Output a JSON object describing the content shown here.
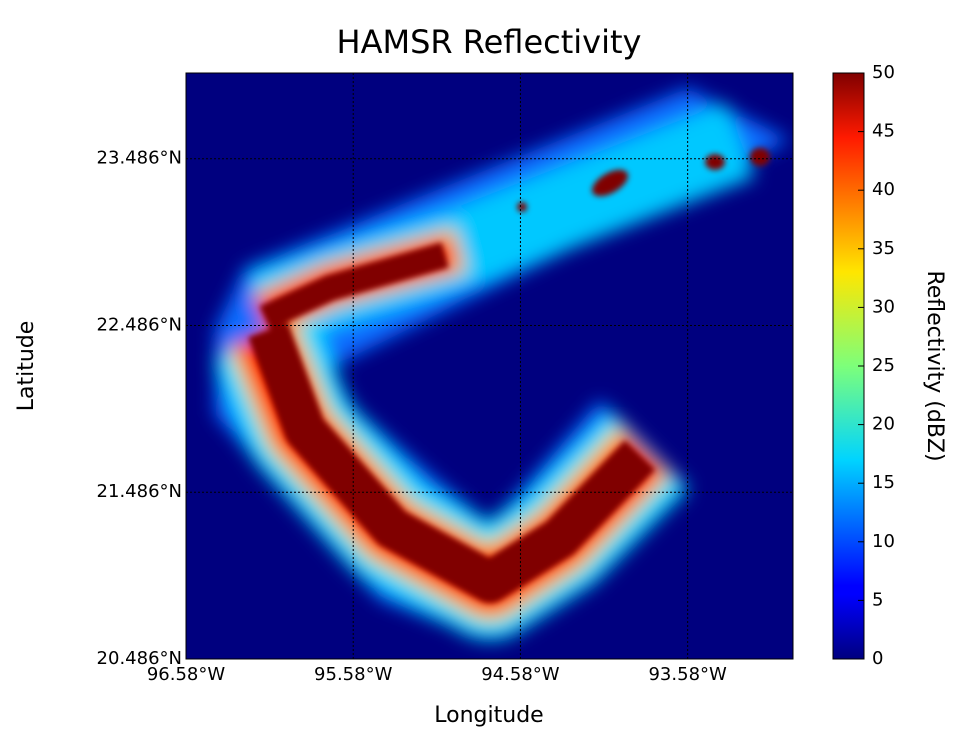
{
  "chart_data": {
    "type": "heatmap",
    "title": "HAMSR Reflectivity",
    "x_label": "Longitude",
    "y_label": "Latitude",
    "xlim": [
      -96.58,
      -92.95
    ],
    "ylim": [
      20.486,
      24.0
    ],
    "xticks": [
      {
        "value": -96.58,
        "label": "96.58°W"
      },
      {
        "value": -95.58,
        "label": "95.58°W"
      },
      {
        "value": -94.58,
        "label": "94.58°W"
      },
      {
        "value": -93.58,
        "label": "93.58°W"
      }
    ],
    "yticks": [
      {
        "value": 20.486,
        "label": "20.486°N"
      },
      {
        "value": 21.486,
        "label": "21.486°N"
      },
      {
        "value": 22.486,
        "label": "22.486°N"
      },
      {
        "value": 23.486,
        "label": "23.486°N"
      }
    ],
    "grid": true,
    "colormap": "jet",
    "colorbar_label": "Reflectivity (dBZ)",
    "clim": [
      0,
      50
    ],
    "colorbar_ticks": [
      0,
      5,
      10,
      15,
      20,
      25,
      30,
      35,
      40,
      45,
      50
    ]
  }
}
